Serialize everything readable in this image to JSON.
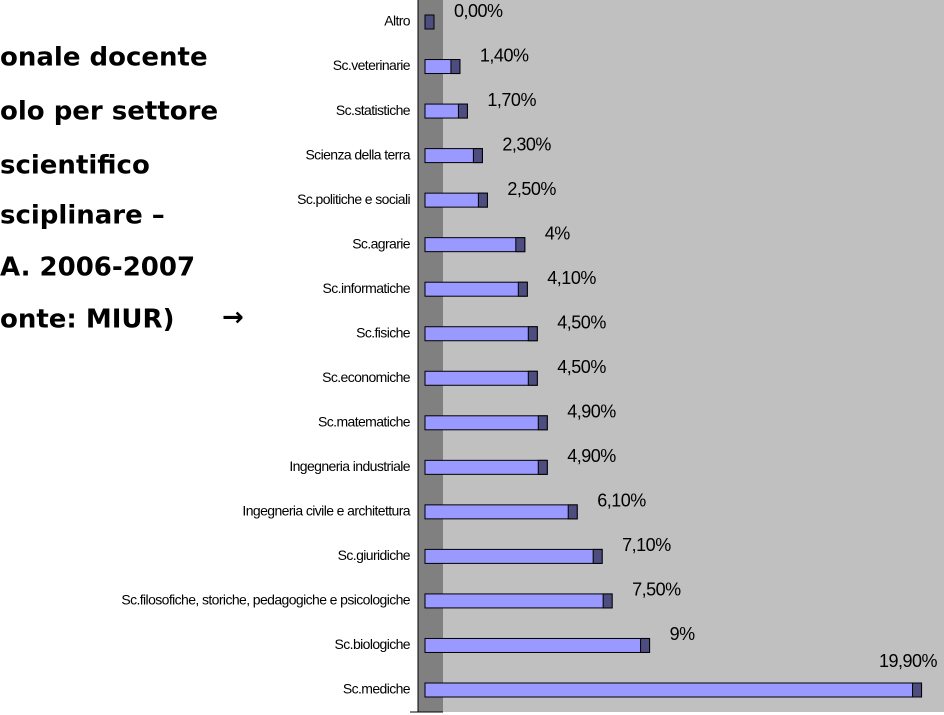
{
  "chart_data": {
    "type": "bar",
    "orientation": "horizontal",
    "title_lines": [
      "onale docente",
      "olo per settore",
      "scientifico",
      "sciplinare –",
      "A. 2006-2007",
      "onte: MIUR)"
    ],
    "annotation": "→",
    "categories": [
      "Altro",
      "Sc.veterinarie",
      "Sc.statistiche",
      "Scienza della terra",
      "Sc.politiche e sociali",
      "Sc.agrarie",
      "Sc.informatiche",
      "Sc.fisiche",
      "Sc.economiche",
      "Sc.matematiche",
      "Ingegneria industriale",
      "Ingegneria civile e architettura",
      "Sc.giuridiche",
      "Sc.filosofiche, storiche, pedagogiche e psicologiche",
      "Sc.biologiche",
      "Sc.mediche"
    ],
    "values": [
      0,
      1.4,
      1.7,
      2.3,
      2.5,
      4,
      4.1,
      4.5,
      4.5,
      4.9,
      4.9,
      6.1,
      7.1,
      7.5,
      9,
      19.9
    ],
    "value_labels": [
      "0,00%",
      "1,40%",
      "1,70%",
      "2,30%",
      "2,50%",
      "4%",
      "4,10%",
      "4,50%",
      "4,50%",
      "4,90%",
      "4,90%",
      "6,10%",
      "7,10%",
      "7,50%",
      "9%",
      "19,90%"
    ],
    "color": "#9999ff",
    "xlim": [
      0,
      20.8
    ]
  }
}
